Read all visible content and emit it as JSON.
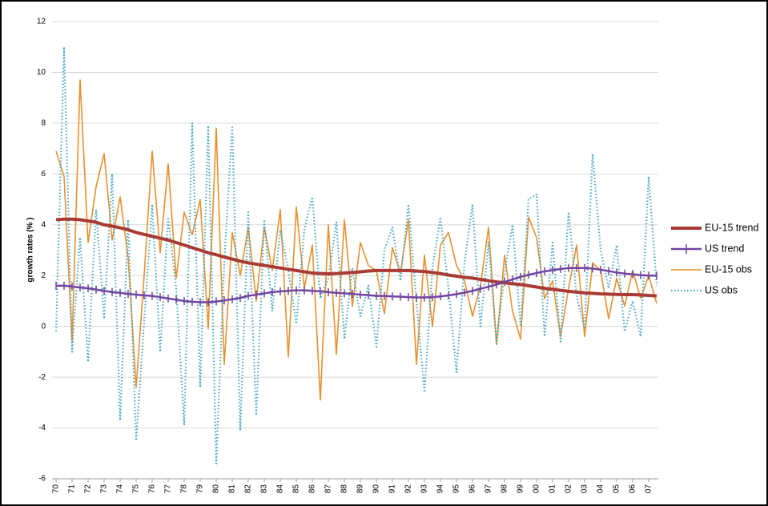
{
  "chart_data": {
    "type": "line",
    "y_label": "growth rates (% )",
    "x": [
      0,
      1,
      2,
      3,
      4,
      5,
      6,
      7,
      8,
      9,
      10,
      11,
      12,
      13,
      14,
      15,
      16,
      17,
      18,
      19,
      20,
      21,
      22,
      23,
      24,
      25,
      26,
      27,
      28,
      29,
      30,
      31,
      32,
      33,
      34,
      35,
      36,
      37,
      38,
      39,
      40,
      41,
      42,
      43,
      44,
      45,
      46,
      47,
      48,
      49,
      50,
      51,
      52,
      53,
      54,
      55,
      56,
      57,
      58,
      59,
      60,
      61,
      62,
      63,
      64,
      65,
      66,
      67,
      68,
      69,
      70,
      71,
      72,
      73,
      74,
      75
    ],
    "xlim": [
      -0.5,
      75.2
    ],
    "xticks": [
      {
        "value": 0,
        "label": "70"
      },
      {
        "value": 2,
        "label": "71"
      },
      {
        "value": 4,
        "label": "72"
      },
      {
        "value": 6,
        "label": "73"
      },
      {
        "value": 8,
        "label": "74"
      },
      {
        "value": 10,
        "label": "75"
      },
      {
        "value": 12,
        "label": "76"
      },
      {
        "value": 14,
        "label": "77"
      },
      {
        "value": 16,
        "label": "78"
      },
      {
        "value": 18,
        "label": "79"
      },
      {
        "value": 20,
        "label": "80"
      },
      {
        "value": 22,
        "label": "81"
      },
      {
        "value": 24,
        "label": "82"
      },
      {
        "value": 26,
        "label": "83"
      },
      {
        "value": 28,
        "label": "84"
      },
      {
        "value": 30,
        "label": "85"
      },
      {
        "value": 32,
        "label": "86"
      },
      {
        "value": 34,
        "label": "87"
      },
      {
        "value": 36,
        "label": "88"
      },
      {
        "value": 38,
        "label": "89"
      },
      {
        "value": 40,
        "label": "90"
      },
      {
        "value": 42,
        "label": "91"
      },
      {
        "value": 44,
        "label": "92"
      },
      {
        "value": 46,
        "label": "93"
      },
      {
        "value": 48,
        "label": "94"
      },
      {
        "value": 50,
        "label": "95"
      },
      {
        "value": 52,
        "label": "96"
      },
      {
        "value": 54,
        "label": "97"
      },
      {
        "value": 56,
        "label": "98"
      },
      {
        "value": 58,
        "label": "99"
      },
      {
        "value": 60,
        "label": "00"
      },
      {
        "value": 62,
        "label": "01"
      },
      {
        "value": 64,
        "label": "02"
      },
      {
        "value": 66,
        "label": "03"
      },
      {
        "value": 68,
        "label": "04"
      },
      {
        "value": 70,
        "label": "05"
      },
      {
        "value": 72,
        "label": "06"
      },
      {
        "value": 74,
        "label": "07"
      }
    ],
    "ylim": [
      -6,
      12
    ],
    "yticks": [
      -6,
      -4,
      -2,
      0,
      2,
      4,
      6,
      8,
      10,
      12
    ],
    "grid": true,
    "legend": "right",
    "series": [
      {
        "name": "EU-15 trend",
        "color": "#a93a34",
        "line_style": "solid",
        "values": [
          4.2,
          4.22,
          4.22,
          4.2,
          4.15,
          4.1,
          4.0,
          3.95,
          3.88,
          3.8,
          3.7,
          3.62,
          3.55,
          3.47,
          3.4,
          3.3,
          3.2,
          3.1,
          3.0,
          2.9,
          2.82,
          2.73,
          2.65,
          2.57,
          2.5,
          2.45,
          2.4,
          2.35,
          2.3,
          2.25,
          2.2,
          2.15,
          2.1,
          2.08,
          2.07,
          2.08,
          2.1,
          2.12,
          2.15,
          2.18,
          2.2,
          2.2,
          2.2,
          2.2,
          2.2,
          2.18,
          2.16,
          2.12,
          2.08,
          2.02,
          1.98,
          1.93,
          1.9,
          1.85,
          1.8,
          1.75,
          1.72,
          1.68,
          1.65,
          1.6,
          1.55,
          1.5,
          1.46,
          1.42,
          1.38,
          1.35,
          1.32,
          1.3,
          1.28,
          1.27,
          1.26,
          1.25,
          1.25,
          1.24,
          1.22,
          1.2
        ]
      },
      {
        "name": "US trend",
        "color": "#7044a0",
        "line_style": "solid",
        "marker": "+",
        "values": [
          1.6,
          1.6,
          1.57,
          1.53,
          1.5,
          1.45,
          1.4,
          1.35,
          1.32,
          1.28,
          1.25,
          1.22,
          1.2,
          1.15,
          1.1,
          1.05,
          1.0,
          0.97,
          0.95,
          0.95,
          0.98,
          1.02,
          1.07,
          1.12,
          1.2,
          1.25,
          1.3,
          1.35,
          1.38,
          1.4,
          1.42,
          1.42,
          1.4,
          1.38,
          1.35,
          1.32,
          1.3,
          1.28,
          1.25,
          1.23,
          1.2,
          1.2,
          1.18,
          1.17,
          1.15,
          1.14,
          1.14,
          1.15,
          1.18,
          1.22,
          1.27,
          1.33,
          1.4,
          1.48,
          1.56,
          1.65,
          1.75,
          1.85,
          1.95,
          2.03,
          2.1,
          2.17,
          2.22,
          2.26,
          2.3,
          2.3,
          2.3,
          2.28,
          2.23,
          2.18,
          2.12,
          2.08,
          2.05,
          2.02,
          2.0,
          2.0
        ]
      },
      {
        "name": "EU-15 obs",
        "color": "#e8902f",
        "line_style": "solid",
        "values": [
          6.9,
          5.9,
          -0.6,
          9.7,
          3.3,
          5.5,
          6.8,
          3.4,
          5.1,
          2.7,
          -2.4,
          2.0,
          6.9,
          2.9,
          6.4,
          1.9,
          4.5,
          3.6,
          5.0,
          -0.1,
          7.8,
          -1.5,
          3.7,
          2.0,
          3.9,
          1.0,
          3.9,
          2.2,
          4.6,
          -1.2,
          4.7,
          1.5,
          3.2,
          -2.9,
          4.0,
          -1.1,
          4.2,
          0.8,
          3.3,
          2.4,
          2.2,
          0.5,
          3.1,
          2.1,
          4.2,
          -1.5,
          2.8,
          0.0,
          3.2,
          3.7,
          2.4,
          1.8,
          0.4,
          1.6,
          3.9,
          -0.7,
          2.8,
          0.6,
          -0.5,
          4.3,
          3.5,
          1.1,
          1.8,
          -0.4,
          1.5,
          3.2,
          -0.4,
          2.5,
          2.2,
          0.3,
          1.9,
          0.8,
          2.2,
          1.1,
          2.0,
          0.9
        ]
      },
      {
        "name": "US obs",
        "color": "#4aaac4",
        "line_style": "dotted",
        "values": [
          -0.2,
          11.0,
          -1.0,
          3.5,
          -1.4,
          4.6,
          0.3,
          6.0,
          -3.7,
          4.2,
          -4.5,
          0.2,
          4.8,
          -1.0,
          4.3,
          1.5,
          -3.9,
          8.0,
          -2.4,
          7.9,
          -5.4,
          2.5,
          7.9,
          -4.1,
          4.5,
          -3.5,
          4.2,
          0.6,
          3.8,
          2.2,
          0.1,
          3.8,
          5.1,
          1.1,
          1.9,
          4.1,
          -0.5,
          2.3,
          0.4,
          1.6,
          -0.8,
          3.0,
          3.9,
          1.8,
          4.8,
          1.0,
          -2.6,
          2.3,
          4.3,
          1.5,
          -1.8,
          2.5,
          4.8,
          0.0,
          3.3,
          -0.7,
          2.1,
          4.0,
          0.0,
          5.0,
          5.2,
          -0.4,
          3.3,
          -0.6,
          4.5,
          1.2,
          -0.1,
          6.8,
          3.0,
          1.5,
          3.2,
          -0.2,
          1.0,
          -0.4,
          5.9,
          1.6
        ]
      }
    ]
  }
}
